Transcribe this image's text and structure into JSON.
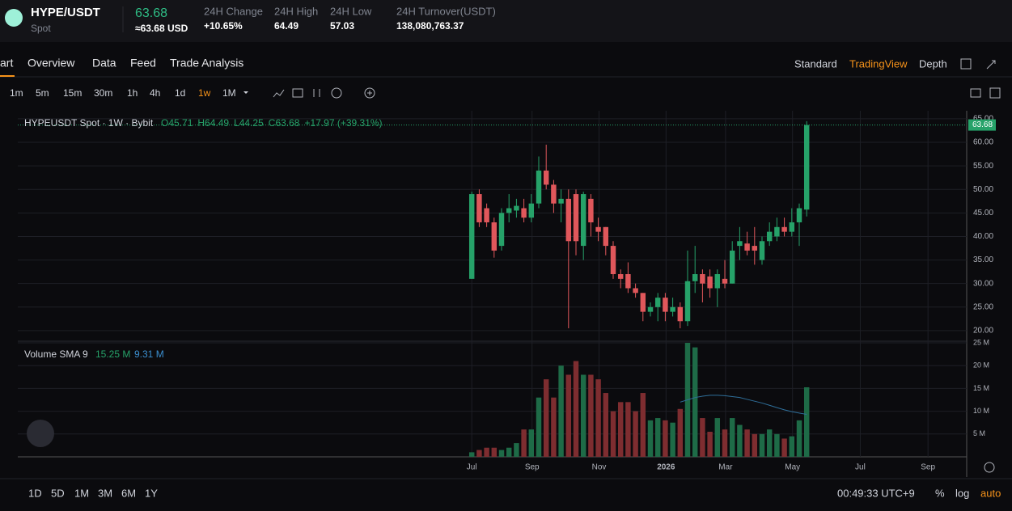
{
  "header": {
    "pair": "HYPE/USDT",
    "market": "Spot",
    "price": "63.68",
    "price_usd": "≈63.68 USD",
    "stats": [
      {
        "label": "24H Change",
        "value": "+10.65%"
      },
      {
        "label": "24H High",
        "value": "64.49"
      },
      {
        "label": "24H Low",
        "value": "57.03"
      },
      {
        "label": "24H Turnover(USDT)",
        "value": "138,080,763.37"
      }
    ]
  },
  "tabs": [
    "art",
    "Overview",
    "Data",
    "Feed",
    "Trade Analysis"
  ],
  "views": [
    "Standard",
    "TradingView",
    "Depth"
  ],
  "intervals": [
    "1m",
    "5m",
    "15m",
    "30m",
    "1h",
    "4h",
    "1d",
    "1w",
    "1M"
  ],
  "ranges": [
    "1D",
    "5D",
    "1M",
    "3M",
    "6M",
    "1Y"
  ],
  "footer": {
    "time": "00:49:33 UTC+9",
    "percent": "%",
    "log": "log",
    "auto": "auto"
  },
  "chart_data": {
    "type": "candlestick",
    "title": "HYPEUSDT Spot · 1W · Bybit",
    "legend": [
      "O45.71",
      "H64.49",
      "L44.25",
      "C63.68",
      "+17.97 (+39.31%)"
    ],
    "up_color": "#26a269",
    "down_color": "#e0575b",
    "open": [
      31,
      49,
      46,
      43,
      38,
      45,
      45.5,
      46,
      44,
      47,
      54,
      51,
      47,
      48,
      49,
      38,
      48,
      42,
      42,
      38,
      32,
      32,
      29,
      28,
      24,
      25,
      27,
      24,
      25,
      22,
      30.5,
      32,
      31.5,
      29,
      31,
      30,
      38,
      38.5,
      38,
      35,
      39,
      40,
      42,
      41,
      43,
      45.71
    ],
    "high": [
      49.5,
      50,
      47,
      44,
      46,
      49,
      48,
      48,
      49,
      57,
      59.5,
      52,
      50,
      50,
      50,
      49.5,
      49,
      44,
      42,
      39,
      33,
      34.5,
      30,
      28,
      26,
      28,
      28,
      27,
      26,
      37,
      38,
      33,
      33,
      33,
      35,
      39,
      42,
      41,
      42,
      40,
      43,
      44,
      44,
      46,
      47,
      64.49
    ],
    "low": [
      31,
      42,
      42,
      35.5,
      37,
      43,
      44,
      43,
      43,
      46,
      50,
      45,
      43,
      20.5,
      36,
      35,
      40,
      39,
      36,
      31,
      29,
      28,
      27,
      22,
      23,
      22,
      22,
      23,
      20.5,
      21,
      28,
      26,
      27,
      25,
      29,
      30,
      35,
      36,
      34,
      34,
      38,
      39,
      40,
      40,
      38,
      44.25
    ],
    "close": [
      49,
      43,
      43,
      37,
      45,
      46,
      46.5,
      44,
      47,
      54,
      51,
      47,
      48,
      39,
      39,
      49,
      43,
      41,
      38,
      32,
      31,
      29,
      28,
      24,
      25,
      27,
      24,
      25,
      22,
      30.5,
      32,
      30,
      29,
      32,
      30,
      37,
      39,
      37,
      37,
      39,
      41,
      42,
      41,
      43,
      46,
      63.68
    ],
    "last_label": "63.68",
    "xlim": [
      -61,
      66.5
    ],
    "xticks": [
      {
        "value": 0,
        "label": "Jul"
      },
      {
        "value": 8.1,
        "label": "Sep"
      },
      {
        "value": 17.1,
        "label": "Nov"
      },
      {
        "value": 26.1,
        "label": "2026"
      },
      {
        "value": 34.1,
        "label": "Mar"
      },
      {
        "value": 43.1,
        "label": "May"
      },
      {
        "value": 52.2,
        "label": "Jul"
      },
      {
        "value": 61.3,
        "label": "Sep"
      }
    ],
    "ylim": [
      17.75,
      66.7
    ],
    "yticks": [
      {
        "value": 20,
        "label": "20.00"
      },
      {
        "value": 25,
        "label": "25.00"
      },
      {
        "value": 30,
        "label": "30.00"
      },
      {
        "value": 35,
        "label": "35.00"
      },
      {
        "value": 40,
        "label": "40.00"
      },
      {
        "value": 45,
        "label": "45.00"
      },
      {
        "value": 50,
        "label": "50.00"
      },
      {
        "value": 55,
        "label": "55.00"
      },
      {
        "value": 60,
        "label": "60.00"
      },
      {
        "value": 65,
        "label": "65.00"
      }
    ],
    "volume": {
      "name": "Volume SMA 9",
      "up_color": "#1e6b47",
      "down_color": "#7e2d30",
      "sma_color": "#2f6f9a",
      "values": [
        1,
        1.5,
        2,
        2,
        1.5,
        2,
        3,
        6,
        6,
        13,
        17,
        13,
        20,
        18,
        21,
        18,
        18,
        17,
        14,
        10,
        12,
        12,
        10,
        14,
        8,
        8.5,
        8,
        7.5,
        10.5,
        25,
        24,
        8.5,
        5.5,
        8.5,
        6,
        8.5,
        7,
        6,
        5,
        5,
        6,
        5,
        4,
        4.5,
        8,
        15.25
      ],
      "value_label": "15.25 M",
      "sma": [
        null,
        null,
        null,
        null,
        null,
        null,
        null,
        null,
        null,
        null,
        null,
        null,
        null,
        null,
        null,
        null,
        null,
        null,
        null,
        null,
        null,
        null,
        null,
        null,
        null,
        null,
        null,
        null,
        12,
        12.5,
        13,
        13.3,
        13.5,
        13.5,
        13.4,
        13.2,
        13,
        12.6,
        12.2,
        11.8,
        11.3,
        10.8,
        10.3,
        9.9,
        9.6,
        9.31
      ],
      "sma_label": "9.31 M",
      "ylim": [
        0,
        25
      ],
      "yticks": [
        {
          "value": 5,
          "label": "5 M"
        },
        {
          "value": 10,
          "label": "10 M"
        },
        {
          "value": 15,
          "label": "15 M"
        },
        {
          "value": 20,
          "label": "20 M"
        },
        {
          "value": 25,
          "label": "25 M"
        }
      ]
    }
  }
}
